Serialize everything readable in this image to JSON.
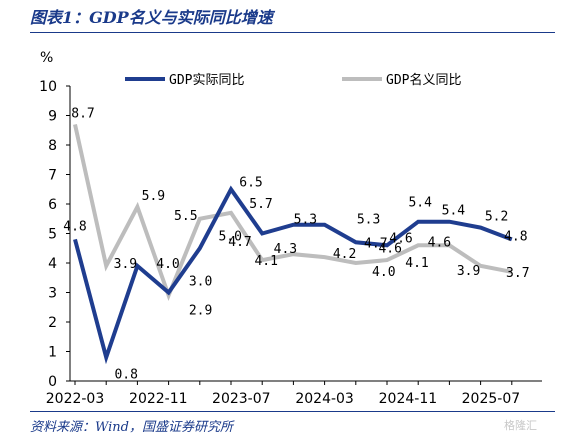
{
  "figure_title": "图表1：GDP名义与实际同比增速",
  "source": "资料来源：Wind，国盛证券研究所",
  "watermark": "格隆汇",
  "chart_data": {
    "type": "line",
    "ylabel": "%",
    "ylim": [
      0,
      10
    ],
    "yticks": [
      0,
      1,
      2,
      3,
      4,
      5,
      6,
      7,
      8,
      9,
      10
    ],
    "x": [
      "2022-03",
      "2022-06",
      "2022-09",
      "2022-12",
      "2023-03",
      "2023-06",
      "2023-09",
      "2023-12",
      "2024-03",
      "2024-06",
      "2024-09",
      "2024-12",
      "2025-03",
      "2025-06",
      "2025-09"
    ],
    "xtick_labels": [
      "2022-03",
      "2022-11",
      "2023-07",
      "2024-03",
      "2024-11",
      "2025-07"
    ],
    "legend_position": "top",
    "series": [
      {
        "name": "GDP实际同比",
        "color": "#1f3d8f",
        "values": [
          4.8,
          0.8,
          3.9,
          3.0,
          4.5,
          6.5,
          5.0,
          5.3,
          5.3,
          4.7,
          4.6,
          5.4,
          5.4,
          5.2,
          4.8
        ],
        "labels": [
          "4.8",
          "0.8",
          "3.9",
          "3.0",
          "",
          "6.5",
          "5.0",
          "5.3",
          "5.3",
          "4.7",
          "4.6",
          "5.4",
          "5.4",
          "5.2",
          "4.8"
        ]
      },
      {
        "name": "GDP名义同比",
        "color": "#bdbdbd",
        "values": [
          8.7,
          3.9,
          5.9,
          2.9,
          5.5,
          5.7,
          4.1,
          4.3,
          4.2,
          4.0,
          4.1,
          4.6,
          4.6,
          3.9,
          3.7
        ],
        "labels": [
          "8.7",
          "",
          "5.9",
          "2.9",
          "5.5",
          "5.7",
          "4.1",
          "4.3",
          "4.2",
          "4.0",
          "4.1",
          "4.6",
          "4.6",
          "3.9",
          "3.7"
        ]
      }
    ],
    "extra_labels": [
      "4.0",
      "4.7"
    ]
  }
}
